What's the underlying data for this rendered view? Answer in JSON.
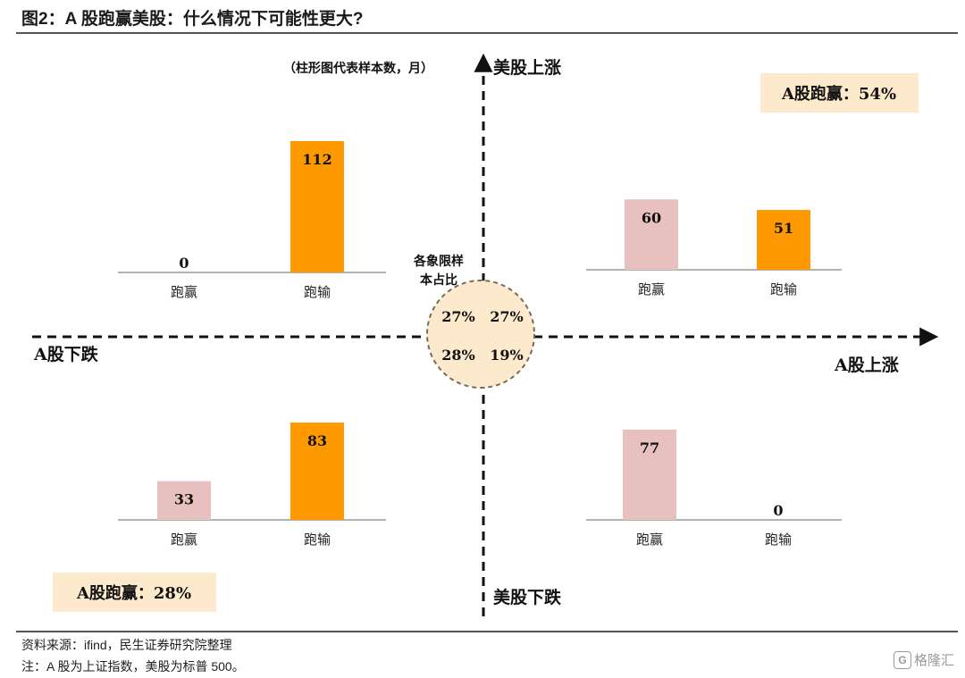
{
  "header": {
    "title": "图2：A 股跑赢美股：什么情况下可能性更大?"
  },
  "footer": {
    "source": "资料来源：ifind，民生证券研究院整理",
    "note": "注：A 股为上证指数，美股为标普 500。",
    "watermark": "格隆汇",
    "watermark_icon": "G"
  },
  "chart_data": {
    "type": "bar",
    "unit_note": "（柱形图代表样本数，月）",
    "axes": {
      "y_positive": "美股上涨",
      "y_negative": "美股下跌",
      "x_positive": "A股上涨",
      "x_negative": "A股下跌"
    },
    "center": {
      "label_line1": "各象限样",
      "label_line2": "本占比",
      "top_left": "27%",
      "top_right": "27%",
      "bottom_left": "28%",
      "bottom_right": "19%"
    },
    "summaries": {
      "top_right": "A股跑赢：54%",
      "bottom_left": "A股跑赢：28%"
    },
    "categories": [
      "跑赢",
      "跑输"
    ],
    "colors": {
      "跑赢": "#e8c0c0",
      "跑输": "#ff9900",
      "summary_bg": "#fde9cc"
    },
    "panels": [
      {
        "quadrant": "top_left",
        "categories": [
          "跑赢",
          "跑输"
        ],
        "values": [
          0,
          112
        ],
        "ylim": [
          0,
          112
        ]
      },
      {
        "quadrant": "top_right",
        "categories": [
          "跑赢",
          "跑输"
        ],
        "values": [
          60,
          51
        ],
        "ylim": [
          0,
          112
        ]
      },
      {
        "quadrant": "bottom_left",
        "categories": [
          "跑赢",
          "跑输"
        ],
        "values": [
          33,
          83
        ],
        "ylim": [
          0,
          112
        ]
      },
      {
        "quadrant": "bottom_right",
        "categories": [
          "跑赢",
          "跑输"
        ],
        "values": [
          77,
          0
        ],
        "ylim": [
          0,
          112
        ]
      }
    ]
  }
}
